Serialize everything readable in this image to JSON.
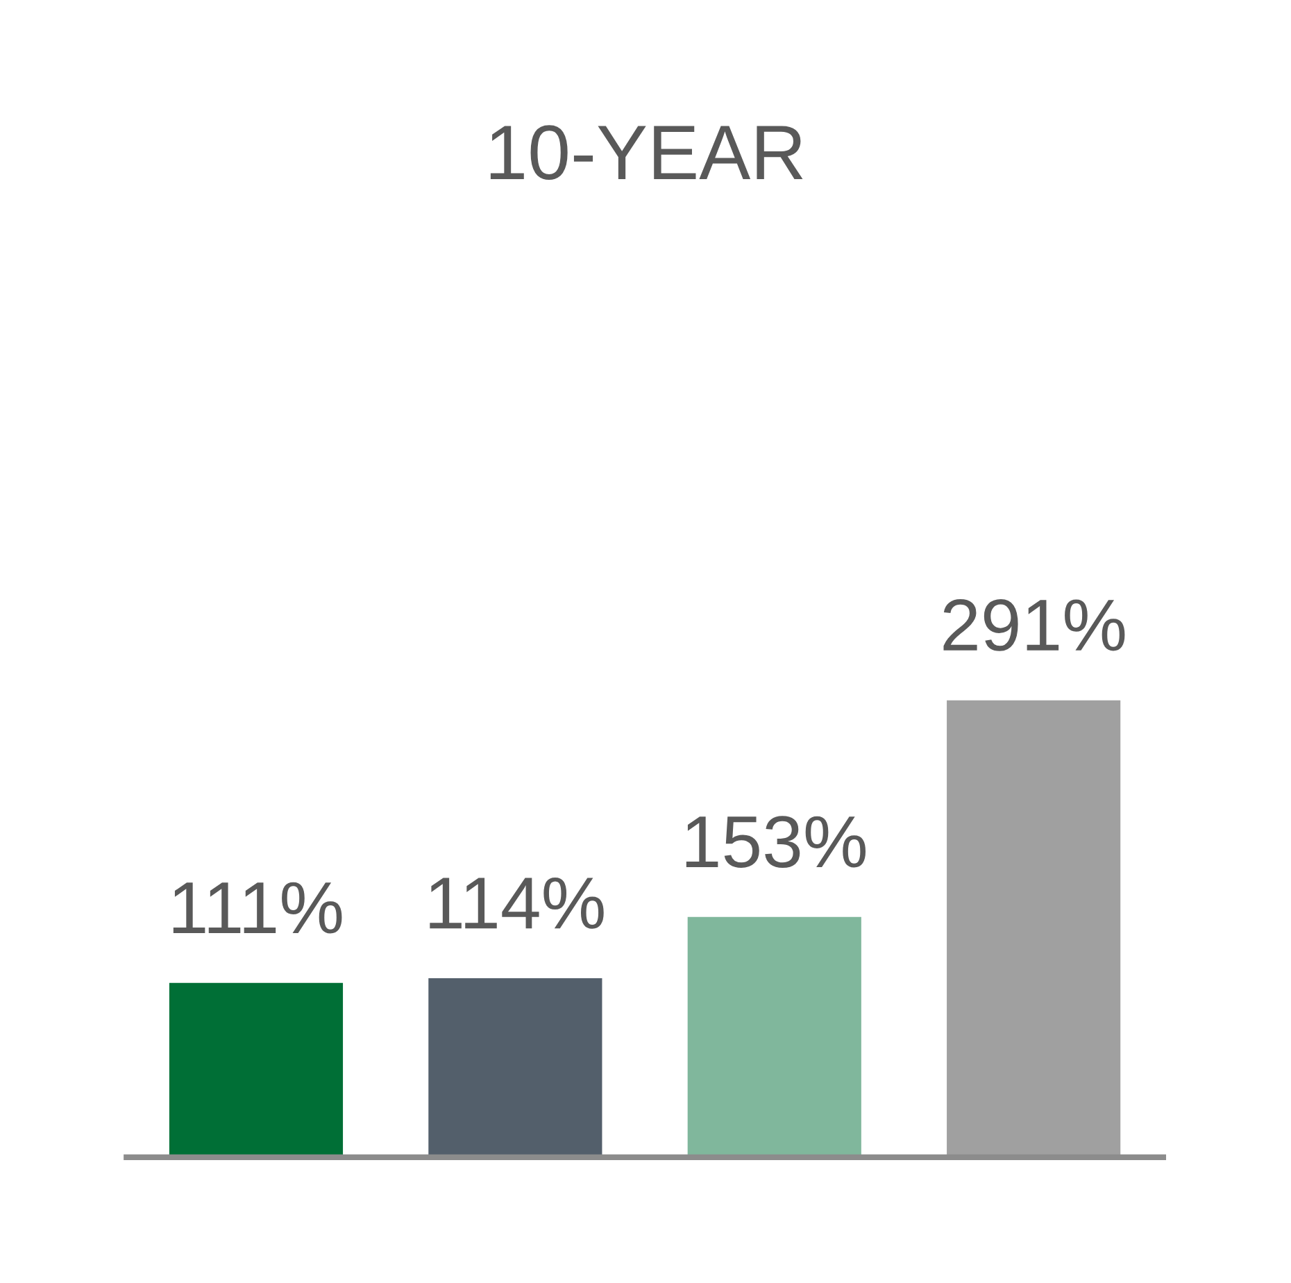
{
  "chart_data": {
    "type": "bar",
    "title": "10-YEAR",
    "categories": [
      null,
      null,
      null,
      null
    ],
    "values": [
      111,
      114,
      153,
      291
    ],
    "colors": [
      "#006f36",
      "#535f6b",
      "#80b79c",
      "#a0a0a0"
    ],
    "value_labels": [
      "111%",
      "114%",
      "153%",
      "291%"
    ],
    "grid": false,
    "legend": false
  }
}
